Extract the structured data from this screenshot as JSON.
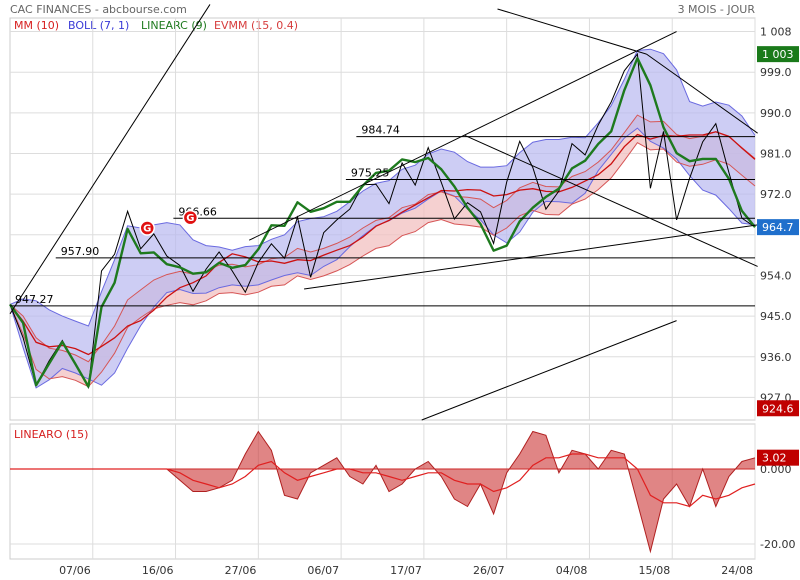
{
  "header": {
    "title": "CAC FINANCES - abcbourse.com",
    "period": "3 MOIS - JOUR"
  },
  "legend": [
    {
      "label": "MM (10)",
      "color": "#d61f1f"
    },
    {
      "label": "BOLL (7, 1)",
      "color": "#3a3ad6"
    },
    {
      "label": "LINEARC (9)",
      "color": "#1e7a1e"
    },
    {
      "label": "EVMM (15, 0.4)",
      "color": "#d63c3c"
    }
  ],
  "colors": {
    "price": "#000000",
    "mm": "#cc1111",
    "boll_fill": "#b8b8f0",
    "boll_line": "#6a6ae0",
    "linearc": "#1e7a1e",
    "evmm_fill": "#f1c0c0",
    "evmm_line": "#d65555",
    "badge_green": "#1a7a1a",
    "badge_blue": "#1f6fcc",
    "badge_red": "#c00000",
    "grid": "#dddddd"
  },
  "chart_data": [
    {
      "type": "line",
      "title": "CAC FINANCES",
      "x_ticks": [
        "07/06",
        "16/06",
        "27/06",
        "06/07",
        "17/07",
        "26/07",
        "04/08",
        "15/08",
        "24/08"
      ],
      "y_ticks": [
        927.0,
        936.0,
        945.0,
        954.0,
        963.0,
        972.0,
        981.0,
        990.0,
        999.0,
        1008
      ],
      "y_tick_labels": [
        "927.0",
        "936.0",
        "945.0",
        "954.0",
        "",
        "972.0",
        "981.0",
        "990.0",
        "999.0",
        "1 008"
      ],
      "ylim": [
        922,
        1011
      ],
      "grid": true,
      "series": [
        {
          "name": "Close",
          "values": [
            947.6,
            940.2,
            929.7,
            935.1,
            939.6,
            934.4,
            929.2,
            955.0,
            958.7,
            968.2,
            959.9,
            963.2,
            958.3,
            956.2,
            950.5,
            955.4,
            959.2,
            955.0,
            950.3,
            956.9,
            961.0,
            957.8,
            966.9,
            953.6,
            963.5,
            966.3,
            968.7,
            974.1,
            974.2,
            969.9,
            978.9,
            974.0,
            982.3,
            974.6,
            966.5,
            970.1,
            968.1,
            961.1,
            974.7,
            983.7,
            977.9,
            968.7,
            972.7,
            983.2,
            980.7,
            987.3,
            992.4,
            999.3,
            1003.0,
            973.3,
            985.9,
            966.3,
            975.5,
            983.6,
            987.6,
            976.8,
            966.7,
            964.7
          ]
        },
        {
          "name": "LINEARC (9)",
          "values": [
            947.6,
            943.5,
            929.7,
            934.5,
            939.3,
            934.4,
            929.4,
            947.0,
            952.4,
            964.3,
            958.9,
            959.1,
            956.5,
            955.8,
            954.4,
            954.7,
            956.8,
            955.7,
            956.3,
            959.8,
            965.1,
            965.0,
            970.2,
            968.1,
            968.9,
            970.3,
            970.3,
            973.9,
            976.7,
            977.2,
            979.7,
            979.1,
            980.0,
            977.5,
            973.7,
            969.0,
            965.4,
            959.5,
            960.6,
            966.0,
            969.0,
            971.4,
            973.2,
            977.7,
            979.4,
            983.1,
            985.9,
            995.0,
            1002.1,
            996.1,
            986.8,
            981.1,
            979.3,
            979.8,
            979.8,
            975.4,
            968.3,
            964.7
          ]
        },
        {
          "name": "MM (10)",
          "values": [
            947.6,
            943.9,
            939.2,
            938.2,
            938.5,
            937.8,
            936.5,
            938.3,
            940.2,
            942.8,
            944.0,
            946.3,
            949.2,
            951.3,
            952.4,
            953.9,
            956.9,
            958.8,
            958.1,
            957.0,
            957.2,
            956.7,
            957.5,
            957.3,
            958.5,
            959.6,
            960.6,
            962.5,
            964.9,
            966.2,
            968.0,
            969.6,
            971.2,
            972.8,
            972.7,
            973.0,
            972.9,
            971.6,
            971.9,
            972.9,
            973.2,
            972.6,
            972.5,
            973.5,
            974.9,
            976.3,
            978.7,
            982.5,
            985.2,
            984.2,
            985.0,
            984.8,
            985.1,
            985.1,
            985.8,
            984.8,
            982.2,
            979.7
          ]
        },
        {
          "name": "BOLL upper",
          "values": [
            947.6,
            948.8,
            948.4,
            946.4,
            945.0,
            943.9,
            942.8,
            950.4,
            957.5,
            965.0,
            964.5,
            965.2,
            965.7,
            965.2,
            961.9,
            960.6,
            960.3,
            959.6,
            960.4,
            960.6,
            962.0,
            963.0,
            965.9,
            966.6,
            967.0,
            968.2,
            970.3,
            972.7,
            974.4,
            975.0,
            977.5,
            978.4,
            980.9,
            982.0,
            981.3,
            979.2,
            978.0,
            978.0,
            978.3,
            981.2,
            983.5,
            984.1,
            984.1,
            984.6,
            984.5,
            987.8,
            991.6,
            997.4,
            1003.8,
            1004.1,
            1003.1,
            999.5,
            992.5,
            991.5,
            992.4,
            991.7,
            989.3,
            985.0
          ]
        },
        {
          "name": "BOLL lower",
          "values": [
            947.6,
            938.0,
            929.1,
            930.9,
            933.4,
            932.4,
            931.1,
            929.7,
            932.4,
            937.9,
            942.9,
            947.0,
            950.2,
            950.9,
            950.0,
            950.1,
            951.3,
            951.9,
            951.6,
            951.9,
            953.0,
            954.0,
            954.6,
            954.0,
            956.0,
            957.5,
            960.4,
            962.8,
            965.0,
            966.1,
            967.8,
            968.9,
            970.9,
            972.7,
            971.6,
            968.7,
            966.3,
            963.0,
            961.2,
            963.6,
            968.0,
            970.4,
            970.3,
            970.0,
            972.2,
            977.2,
            980.8,
            984.4,
            986.6,
            983.7,
            982.2,
            979.8,
            976.1,
            972.9,
            971.8,
            968.8,
            965.6,
            965.2
          ]
        },
        {
          "name": "EVMM upper",
          "values": [
            947.6,
            945.0,
            940.2,
            937.9,
            937.4,
            936.4,
            934.9,
            938.6,
            942.8,
            948.6,
            950.8,
            953.0,
            954.2,
            954.9,
            954.3,
            954.9,
            956.3,
            956.5,
            955.9,
            956.4,
            957.7,
            958.0,
            960.0,
            959.2,
            960.0,
            961.1,
            962.5,
            964.5,
            966.2,
            966.8,
            969.0,
            969.8,
            971.9,
            972.5,
            971.5,
            971.3,
            970.9,
            969.0,
            970.6,
            973.4,
            974.6,
            973.7,
            973.6,
            975.9,
            977.0,
            979.1,
            981.8,
            985.6,
            989.5,
            988.0,
            988.1,
            985.2,
            984.3,
            984.8,
            985.8,
            984.7,
            982.3,
            979.9
          ]
        },
        {
          "name": "EVMM lower",
          "values": [
            947.6,
            941.0,
            933.2,
            931.1,
            931.6,
            930.8,
            929.4,
            932.6,
            936.8,
            942.5,
            944.7,
            946.6,
            947.4,
            948.0,
            947.5,
            948.4,
            950.0,
            950.2,
            949.7,
            950.3,
            951.6,
            951.9,
            953.9,
            953.1,
            953.9,
            955.0,
            956.4,
            958.3,
            960.0,
            960.6,
            962.8,
            963.7,
            965.7,
            966.4,
            965.4,
            965.1,
            964.7,
            962.9,
            964.5,
            967.2,
            968.4,
            967.5,
            967.4,
            969.8,
            970.9,
            973.0,
            975.6,
            979.4,
            983.4,
            981.8,
            982.0,
            979.1,
            978.2,
            978.6,
            979.6,
            978.6,
            976.2,
            973.8
          ]
        },
        {
          "name": "EVMM",
          "values": [
            947.6,
            943.0,
            936.7,
            934.5,
            934.5,
            933.6,
            932.2,
            935.6,
            939.8,
            945.6,
            947.8,
            949.8,
            950.8,
            951.5,
            950.9,
            951.7,
            953.2,
            953.4,
            952.8,
            953.4,
            954.7,
            955.0,
            957.0,
            956.1,
            957.0,
            958.1,
            959.5,
            961.4,
            963.1,
            963.7,
            965.9,
            966.8,
            968.8,
            969.5,
            968.5,
            968.2,
            967.8,
            966.0,
            967.6,
            970.3,
            971.5,
            970.6,
            970.5,
            972.9,
            974.0,
            976.1,
            978.7,
            982.5,
            986.5,
            984.9,
            985.1,
            982.2,
            981.3,
            981.7,
            982.7,
            981.7,
            979.3,
            976.9
          ]
        }
      ],
      "trendlines": [
        {
          "from": [
            0,
            945.5
          ],
          "to": [
            15.3,
            1014.0
          ]
        },
        {
          "from": [
            18.3,
            961.8
          ],
          "to": [
            51.0,
            1008.0
          ]
        },
        {
          "from": [
            37.3,
            1013.0
          ],
          "to": [
            48.7,
            1003.0
          ]
        },
        {
          "from": [
            48.7,
            1003.0
          ],
          "to": [
            57.2,
            985.5
          ]
        },
        {
          "from": [
            34.8,
            985.0
          ],
          "to": [
            57.2,
            956.0
          ]
        },
        {
          "from": [
            22.5,
            951.0
          ],
          "to": [
            57.2,
            965.2
          ]
        },
        {
          "from": [
            31.5,
            922.0
          ],
          "to": [
            51.0,
            944.0
          ]
        }
      ],
      "levels": [
        {
          "value": 947.27,
          "label": "947.27",
          "x_start": 0.0
        },
        {
          "value": 957.9,
          "label": "957.90",
          "x_start": 3.5
        },
        {
          "value": 966.66,
          "label": "966.66",
          "x_start": 12.5
        },
        {
          "value": 975.25,
          "label": "975.25",
          "x_start": 25.7
        },
        {
          "value": 984.74,
          "label": "984.74",
          "x_start": 26.5
        }
      ],
      "price_tags": [
        {
          "value": 1003,
          "label": "1 003",
          "color": "#1a7a1a"
        },
        {
          "value": 964.7,
          "label": "964.7",
          "color": "#1f6fcc"
        },
        {
          "value": 924.6,
          "label": "924.6",
          "color": "#c00000"
        }
      ],
      "events": [
        {
          "x": 10.5,
          "value": 964.5,
          "label": "G"
        },
        {
          "x": 13.8,
          "value": 966.8,
          "label": "G"
        }
      ]
    },
    {
      "type": "area",
      "title": "LINEARO (15)",
      "y_ticks": [
        0.0,
        -20.0
      ],
      "y_tick_labels": [
        "0.000",
        "-20.00"
      ],
      "ylim": [
        -24,
        12
      ],
      "series": [
        {
          "name": "LINEARO (15)",
          "values": [
            0,
            0,
            0,
            0,
            0,
            0,
            0,
            0,
            0,
            0,
            0,
            0,
            0,
            -3,
            -6,
            -6,
            -5,
            -3,
            4,
            10,
            5,
            -7,
            -8,
            -1,
            1,
            3,
            -2,
            -4,
            1,
            -6,
            -4,
            0,
            2,
            -2,
            -8,
            -10,
            -4,
            -12,
            -1,
            4,
            10,
            9,
            -1,
            5,
            4,
            0,
            5,
            4,
            -9,
            -22,
            -8,
            -4,
            -10,
            0,
            -10,
            -2,
            2,
            3
          ]
        },
        {
          "name": "signal",
          "values": [
            0,
            0,
            0,
            0,
            0,
            0,
            0,
            0,
            0,
            0,
            0,
            0,
            0,
            -1,
            -3,
            -4,
            -5,
            -4,
            -2,
            1,
            2,
            -1,
            -3,
            -2,
            -1,
            0,
            0,
            -1,
            -1,
            -2,
            -3,
            -2,
            -1,
            -1,
            -3,
            -4,
            -4,
            -6,
            -5,
            -3,
            1,
            3,
            3,
            4,
            4,
            3,
            3,
            3,
            0,
            -7,
            -9,
            -9,
            -10,
            -7,
            -8,
            -7,
            -5,
            -4
          ]
        }
      ],
      "price_tags": [
        {
          "value": 3.02,
          "label": "3.02",
          "color": "#c00000"
        }
      ]
    }
  ]
}
